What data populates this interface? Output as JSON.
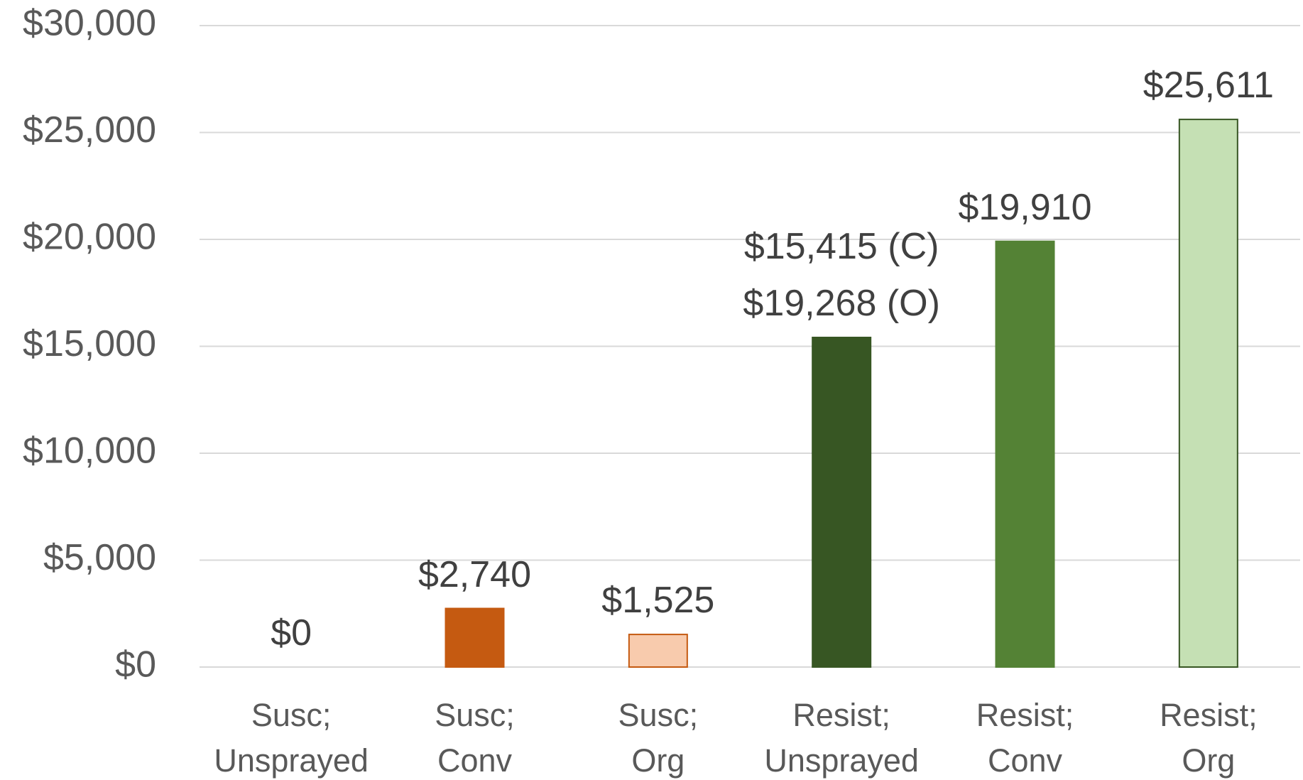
{
  "chart_data": {
    "type": "bar",
    "categories": [
      "Susc;\nUnsprayed",
      "Susc;\nConv",
      "Susc;\nOrg",
      "Resist;\nUnsprayed",
      "Resist;\nConv",
      "Resist;\nOrg"
    ],
    "values": [
      0,
      2740,
      1525,
      15415,
      19910,
      25611
    ],
    "value_labels": [
      "$0",
      "$2,740",
      "$1,525",
      "$15,415 (C)\n$19,268 (O)",
      "$19,910",
      "$25,611"
    ],
    "colors": [
      "#c55a11",
      "#c55a11",
      "#f8cbad",
      "#375623",
      "#548235",
      "#c5e0b4"
    ],
    "edgecolors": [
      "#c55a11",
      "#c55a11",
      "#c55a11",
      "#375623",
      "#548235",
      "#375623"
    ],
    "ylim": [
      0,
      30000
    ],
    "yticks": [
      {
        "value": 0,
        "label": "$0"
      },
      {
        "value": 5000,
        "label": "$5,000"
      },
      {
        "value": 10000,
        "label": "$10,000"
      },
      {
        "value": 15000,
        "label": "$15,000"
      },
      {
        "value": 20000,
        "label": "$20,000"
      },
      {
        "value": 25000,
        "label": "$25,000"
      },
      {
        "value": 30000,
        "label": "$30,000"
      }
    ],
    "grid": true
  }
}
